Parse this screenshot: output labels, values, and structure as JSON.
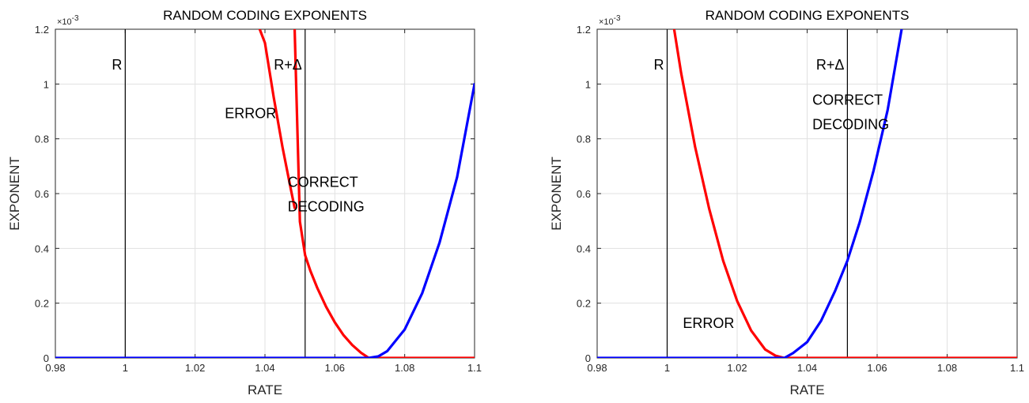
{
  "chart_data": [
    {
      "type": "line",
      "title": "RANDOM CODING EXPONENTS",
      "xlabel": "RATE",
      "ylabel": "EXPONENT",
      "xlim": [
        0.98,
        1.1
      ],
      "ylim": [
        0,
        0.0012
      ],
      "y_multiplier": "×10",
      "y_multiplier_exp": "-3",
      "xticks": [
        "0.98",
        "1",
        "1.02",
        "1.04",
        "1.06",
        "1.08",
        "1.1"
      ],
      "yticks": [
        "0",
        "0.2",
        "0.4",
        "0.6",
        "0.8",
        "1",
        "1.2"
      ],
      "grid": true,
      "colors": {
        "error": "#ff0000",
        "correct": "#0000ff",
        "vline": "#000000"
      },
      "vlines": [
        {
          "x": 1.0,
          "label": "R"
        },
        {
          "x": 1.0515,
          "label": "R+Δ"
        }
      ],
      "annotations": [
        {
          "text": "ERROR",
          "x": 1.0285,
          "y": 0.000875
        },
        {
          "text": "CORRECT",
          "x": 1.0465,
          "y": 0.000625
        },
        {
          "text": "DECODING",
          "x": 1.0465,
          "y": 0.000535
        }
      ],
      "series": [
        {
          "key": "error",
          "color": "#ff0000",
          "x": [
            1.0485,
            1.05,
            1.0515,
            1.053,
            1.055,
            1.0575,
            1.06,
            1.0625,
            1.065,
            1.0675,
            1.0697,
            1.072,
            1.08,
            1.1
          ],
          "y": [
            0.0012,
            0.000498,
            0.000375,
            0.000318,
            0.000255,
            0.000187,
            0.00013,
            8.3e-05,
            4.7e-05,
            1.9e-05,
            0.0,
            0.0,
            0.0,
            0.0
          ]
        },
        {
          "key": "correct",
          "color": "#0000ff",
          "x": [
            0.98,
            1.0,
            1.04,
            1.06,
            1.068,
            1.0697,
            1.0725,
            1.075,
            1.08,
            1.085,
            1.09,
            1.095,
            1.1
          ],
          "y": [
            0.0,
            0.0,
            0.0,
            0.0,
            0.0,
            0.0,
            6e-06,
            2.5e-05,
            0.000104,
            0.000236,
            0.000422,
            0.00066,
            0.001
          ]
        },
        {
          "key": "error-upper",
          "color": "#ff0000",
          "x": [
            1.0385,
            1.04,
            1.0425,
            1.045,
            1.0475,
            1.0485
          ],
          "y": [
            0.0012,
            0.00115,
            0.000952,
            0.000771,
            0.00061,
            0.000548
          ]
        }
      ]
    },
    {
      "type": "line",
      "title": "RANDOM CODING EXPONENTS",
      "xlabel": "RATE",
      "ylabel": "EXPONENT",
      "xlim": [
        0.98,
        1.1
      ],
      "ylim": [
        0,
        0.0012
      ],
      "y_multiplier": "×10",
      "y_multiplier_exp": "-3",
      "xticks": [
        "0.98",
        "1",
        "1.02",
        "1.04",
        "1.06",
        "1.08",
        "1.1"
      ],
      "yticks": [
        "0",
        "0.2",
        "0.4",
        "0.6",
        "0.8",
        "1",
        "1.2"
      ],
      "grid": true,
      "colors": {
        "error": "#ff0000",
        "correct": "#0000ff",
        "vline": "#000000"
      },
      "vlines": [
        {
          "x": 1.0,
          "label": "R"
        },
        {
          "x": 1.0515,
          "label": "R+Δ"
        }
      ],
      "annotations": [
        {
          "text": "CORRECT",
          "x": 1.0415,
          "y": 0.000925
        },
        {
          "text": "DECODING",
          "x": 1.0415,
          "y": 0.000835
        },
        {
          "text": "ERROR",
          "x": 1.0045,
          "y": 0.00011
        }
      ],
      "series": [
        {
          "key": "error",
          "color": "#ff0000",
          "x": [
            1.002,
            1.004,
            1.008,
            1.012,
            1.016,
            1.02,
            1.024,
            1.028,
            1.031,
            1.0335,
            1.036,
            1.05,
            1.08,
            1.1
          ],
          "y": [
            0.0012,
            0.00104,
            0.00077,
            0.000545,
            0.000355,
            0.000208,
            0.0001,
            3.1e-05,
            8e-06,
            0.0,
            0.0,
            0.0,
            0.0,
            0.0
          ]
        },
        {
          "key": "correct",
          "color": "#0000ff",
          "x": [
            0.98,
            1.0,
            1.02,
            1.033,
            1.0335,
            1.036,
            1.04,
            1.044,
            1.048,
            1.0515,
            1.055,
            1.059,
            1.063,
            1.067
          ],
          "y": [
            0.0,
            0.0,
            0.0,
            0.0,
            0.0,
            1.8e-05,
            5.8e-05,
            0.000136,
            0.000245,
            0.000355,
            0.000495,
            0.000685,
            0.000905,
            0.0012
          ]
        }
      ]
    }
  ]
}
